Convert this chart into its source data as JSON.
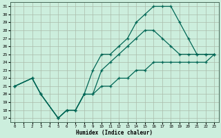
{
  "xlabel": "Humidex (Indice chaleur)",
  "background_color": "#cceedd",
  "grid_color": "#aabbaa",
  "line_color": "#006655",
  "xlim": [
    -0.5,
    23.5
  ],
  "ylim": [
    16.5,
    31.5
  ],
  "xticks": [
    0,
    1,
    2,
    3,
    4,
    5,
    6,
    7,
    8,
    9,
    10,
    11,
    12,
    13,
    14,
    15,
    16,
    17,
    18,
    19,
    20,
    21,
    22,
    23
  ],
  "yticks": [
    17,
    18,
    19,
    20,
    21,
    22,
    23,
    24,
    25,
    26,
    27,
    28,
    29,
    30,
    31
  ],
  "top_line": {
    "x": [
      0,
      2,
      3,
      5,
      6,
      7,
      8,
      9,
      10,
      11,
      12,
      13,
      14,
      15,
      16,
      17,
      18,
      19,
      20,
      21,
      22,
      23
    ],
    "y": [
      21,
      22,
      20,
      17,
      18,
      18,
      20,
      23,
      25,
      25,
      26,
      27,
      29,
      30,
      31,
      31,
      31,
      29,
      27,
      25,
      25,
      25
    ]
  },
  "mid_line": {
    "x": [
      0,
      2,
      3,
      5,
      6,
      7,
      8,
      9,
      10,
      11,
      12,
      13,
      14,
      15,
      16,
      17,
      18,
      19,
      20,
      21,
      22,
      23
    ],
    "y": [
      21,
      22,
      20,
      17,
      18,
      18,
      20,
      20,
      23,
      24,
      25,
      26,
      27,
      28,
      28,
      27,
      26,
      25,
      25,
      25,
      25,
      25
    ]
  },
  "bot_line": {
    "x": [
      0,
      2,
      3,
      5,
      6,
      7,
      8,
      9,
      10,
      11,
      12,
      13,
      14,
      15,
      16,
      17,
      18,
      19,
      20,
      21,
      22,
      23
    ],
    "y": [
      21,
      22,
      20,
      17,
      18,
      18,
      20,
      20,
      21,
      21,
      22,
      22,
      23,
      23,
      24,
      24,
      24,
      24,
      24,
      24,
      24,
      25
    ]
  },
  "marker": "+",
  "markersize": 3,
  "linewidth": 0.9
}
